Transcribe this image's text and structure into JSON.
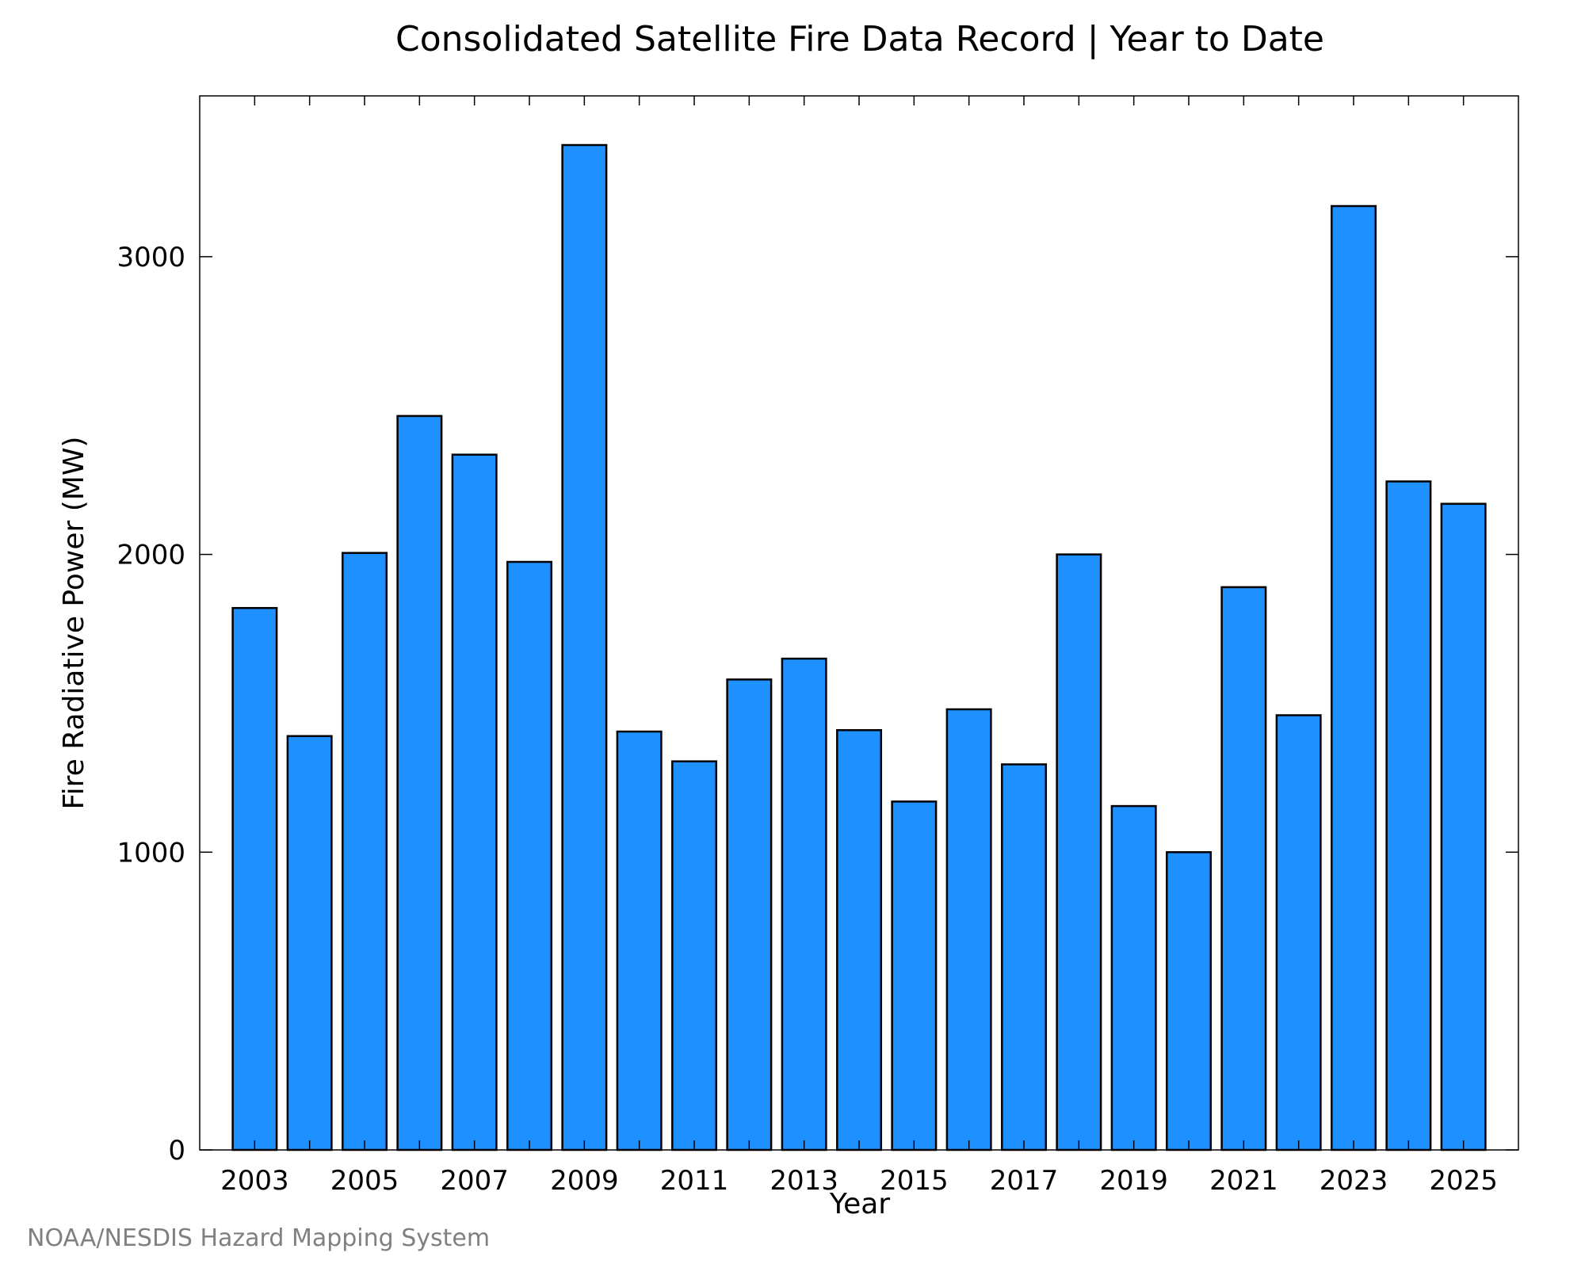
{
  "chart_data": {
    "type": "bar",
    "title": "Consolidated Satellite Fire Data Record | Year to Date",
    "xlabel": "Year",
    "ylabel": "Fire Radiative Power (MW)",
    "categories": [
      "2003",
      "2004",
      "2005",
      "2006",
      "2007",
      "2008",
      "2009",
      "2010",
      "2011",
      "2012",
      "2013",
      "2014",
      "2015",
      "2016",
      "2017",
      "2018",
      "2019",
      "2020",
      "2021",
      "2022",
      "2023",
      "2024",
      "2025"
    ],
    "values": [
      1820,
      1390,
      2005,
      2465,
      2335,
      1975,
      3375,
      1405,
      1305,
      1580,
      1650,
      1410,
      1170,
      1480,
      1295,
      2000,
      1155,
      1000,
      1890,
      1460,
      3170,
      2245,
      2170
    ],
    "x_tick_labels": [
      "2003",
      "2005",
      "2007",
      "2009",
      "2011",
      "2013",
      "2015",
      "2017",
      "2019",
      "2021",
      "2023",
      "2025"
    ],
    "y_ticks": [
      0,
      1000,
      2000,
      3000
    ],
    "ylim": [
      0,
      3540
    ],
    "bar_color": "#1E90FF",
    "grid": false,
    "credit": "NOAA/NESDIS Hazard Mapping System"
  }
}
